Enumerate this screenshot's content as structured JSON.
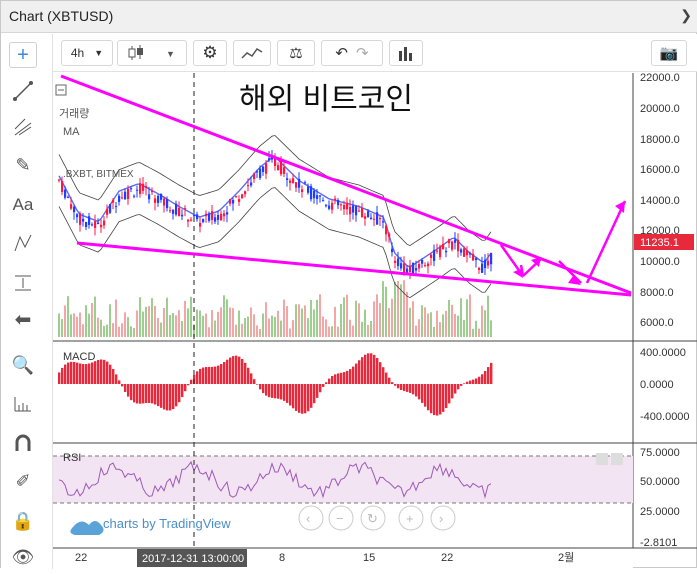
{
  "window": {
    "title": "Chart (XBTUSD)"
  },
  "toolbar": {
    "interval": "4h"
  },
  "leftbar": {
    "text_tool": "Aa"
  },
  "chart": {
    "overlay_title": "해외 비트코인",
    "indicator_volume": "거래량",
    "indicator_ma": "MA",
    "indicator_bb": ".BXBT, BITMEX",
    "current_price": "11235.1",
    "crosshair_time": "2017-12-31 13:00:00",
    "watermark": "charts by TradingView",
    "price_ticks": [
      "22000.0",
      "20000.0",
      "18000.0",
      "16000.0",
      "14000.0",
      "12000.0",
      "10000.0",
      "8000.0",
      "6000.0"
    ],
    "macd_label": "MACD",
    "macd_ticks": [
      "400.0000",
      "0.0000",
      "-400.0000"
    ],
    "rsi_label": "RSI",
    "rsi_ticks": [
      "75.0000",
      "50.0000",
      "25.0000",
      "-2.8101"
    ],
    "time_ticks": [
      "22",
      "8",
      "15",
      "22",
      "2월"
    ],
    "colors": {
      "accent": "#ff00ff",
      "up": "#ff1744",
      "down": "#1e3dff",
      "price_badge": "#e8283b"
    }
  }
}
